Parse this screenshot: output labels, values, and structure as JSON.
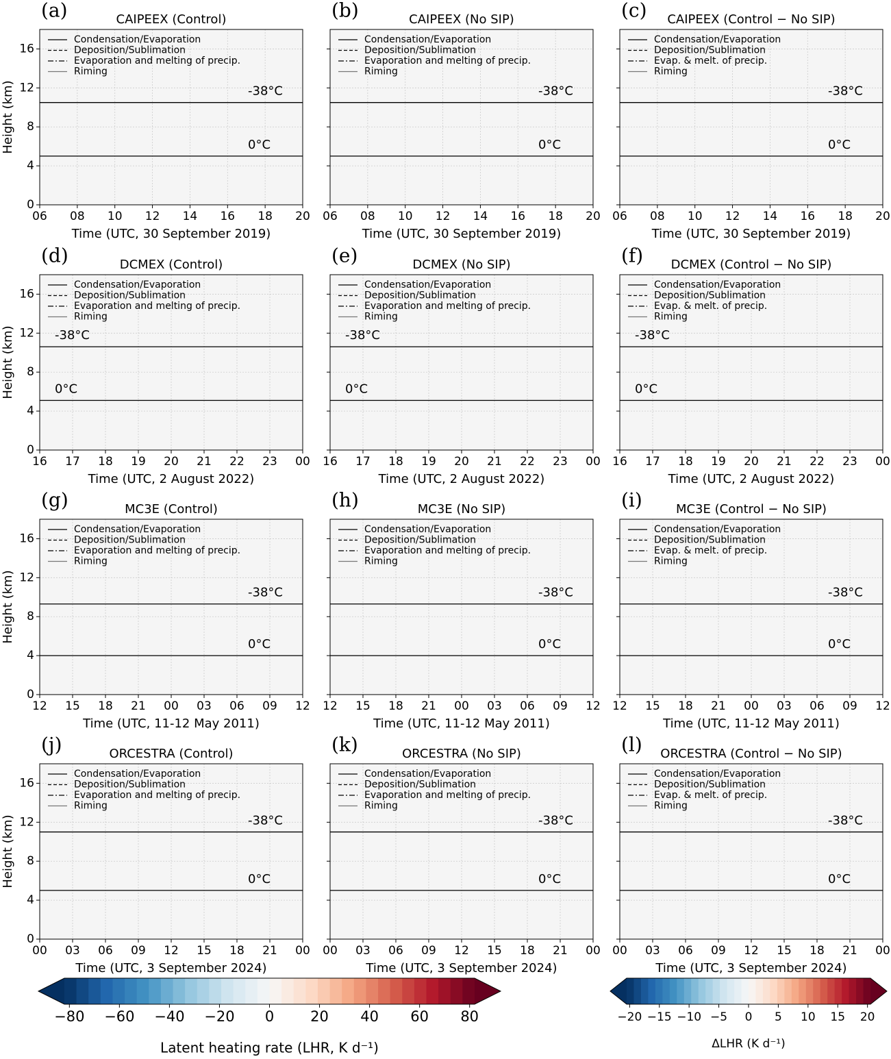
{
  "chart_data": [
    {
      "type": "contour",
      "panel": "(a)",
      "title": "CAIPEEX (Control)",
      "xlabel": "Time (UTC, 30 September 2019)",
      "ylabel": "Height (km)",
      "xlim": [
        6,
        20
      ],
      "xticks": [
        {
          "value": 6,
          "label": "06"
        },
        {
          "value": 8,
          "label": "08"
        },
        10,
        12,
        14,
        16,
        18,
        20
      ],
      "ylim": [
        0,
        18
      ],
      "yticks": [
        0,
        4,
        8,
        12,
        16
      ],
      "grid": true,
      "isotherm_label_side": "right",
      "isotherms": [
        {
          "label": "-38°C",
          "height": 10.5
        },
        {
          "label": "0°C",
          "height": 5.0
        }
      ],
      "legend": [
        "Condensation/Evaporation",
        "Deposition/Sublimation",
        "Evaporation and melting of precip.",
        "Riming"
      ]
    },
    {
      "type": "contour",
      "panel": "(b)",
      "title": "CAIPEEX (No SIP)",
      "xlabel": "Time (UTC, 30 September 2019)",
      "xlim": [
        6,
        20
      ],
      "xticks": [
        {
          "value": 6,
          "label": "06"
        },
        {
          "value": 8,
          "label": "08"
        },
        10,
        12,
        14,
        16,
        18,
        20
      ],
      "ylim": [
        0,
        18
      ],
      "yticks": [
        0,
        4,
        8,
        12,
        16
      ],
      "grid": true,
      "isotherm_label_side": "right",
      "isotherms": [
        {
          "label": "-38°C",
          "height": 10.5
        },
        {
          "label": "0°C",
          "height": 5.0
        }
      ],
      "legend": [
        "Condensation/Evaporation",
        "Deposition/Sublimation",
        "Evaporation and melting of precip.",
        "Riming"
      ]
    },
    {
      "type": "contour",
      "panel": "(c)",
      "title": "CAIPEEX (Control − No SIP)",
      "xlabel": "Time (UTC, 30 September 2019)",
      "xlim": [
        6,
        20
      ],
      "xticks": [
        {
          "value": 6,
          "label": "06"
        },
        {
          "value": 8,
          "label": "08"
        },
        10,
        12,
        14,
        16,
        18,
        20
      ],
      "ylim": [
        0,
        18
      ],
      "yticks": [
        0,
        4,
        8,
        12,
        16
      ],
      "grid": true,
      "isotherm_label_side": "right",
      "isotherms": [
        {
          "label": "-38°C",
          "height": 10.5
        },
        {
          "label": "0°C",
          "height": 5.0
        }
      ],
      "legend": [
        "Condensation/Evaporation",
        "Deposition/Sublimation",
        "Evap. & melt. of precip.",
        "Riming"
      ]
    },
    {
      "type": "contour",
      "panel": "(d)",
      "title": "DCMEX (Control)",
      "xlabel": "Time (UTC, 2 August 2022)",
      "ylabel": "Height (km)",
      "xlim": [
        16,
        24
      ],
      "xticks": [
        16,
        17,
        18,
        19,
        20,
        21,
        22,
        23,
        {
          "value": 24,
          "label": "00"
        }
      ],
      "ylim": [
        0,
        18
      ],
      "yticks": [
        0,
        4,
        8,
        12,
        16
      ],
      "grid": true,
      "isotherm_label_side": "left",
      "isotherms": [
        {
          "label": "-38°C",
          "height": 10.6
        },
        {
          "label": "0°C",
          "height": 5.1
        }
      ],
      "legend": [
        "Condensation/Evaporation",
        "Deposition/Sublimation",
        "Evaporation and melting of precip.",
        "Riming"
      ]
    },
    {
      "type": "contour",
      "panel": "(e)",
      "title": "DCMEX (No SIP)",
      "xlabel": "Time (UTC, 2 August 2022)",
      "xlim": [
        16,
        24
      ],
      "xticks": [
        16,
        17,
        18,
        19,
        20,
        21,
        22,
        23,
        {
          "value": 24,
          "label": "00"
        }
      ],
      "ylim": [
        0,
        18
      ],
      "yticks": [
        0,
        4,
        8,
        12,
        16
      ],
      "grid": true,
      "isotherm_label_side": "left",
      "isotherms": [
        {
          "label": "-38°C",
          "height": 10.6
        },
        {
          "label": "0°C",
          "height": 5.1
        }
      ],
      "legend": [
        "Condensation/Evaporation",
        "Deposition/Sublimation",
        "Evaporation and melting of precip.",
        "Riming"
      ]
    },
    {
      "type": "contour",
      "panel": "(f)",
      "title": "DCMEX (Control − No SIP)",
      "xlabel": "Time (UTC, 2 August 2022)",
      "xlim": [
        16,
        24
      ],
      "xticks": [
        16,
        17,
        18,
        19,
        20,
        21,
        22,
        23,
        {
          "value": 24,
          "label": "00"
        }
      ],
      "ylim": [
        0,
        18
      ],
      "yticks": [
        0,
        4,
        8,
        12,
        16
      ],
      "grid": true,
      "isotherm_label_side": "left",
      "isotherms": [
        {
          "label": "-38°C",
          "height": 10.6
        },
        {
          "label": "0°C",
          "height": 5.1
        }
      ],
      "legend": [
        "Condensation/Evaporation",
        "Deposition/Sublimation",
        "Evap. & melt. of precip.",
        "Riming"
      ]
    },
    {
      "type": "contour",
      "panel": "(g)",
      "title": "MC3E (Control)",
      "xlabel": "Time (UTC, 11-12 May 2011)",
      "ylabel": "Height (km)",
      "xlim": [
        12,
        36
      ],
      "xticks": [
        12,
        15,
        18,
        21,
        {
          "value": 24,
          "label": "00"
        },
        {
          "value": 27,
          "label": "03"
        },
        {
          "value": 30,
          "label": "06"
        },
        {
          "value": 33,
          "label": "09"
        },
        {
          "value": 36,
          "label": "12"
        }
      ],
      "ylim": [
        0,
        18
      ],
      "yticks": [
        0,
        4,
        8,
        12,
        16
      ],
      "grid": true,
      "isotherm_label_side": "right",
      "isotherms": [
        {
          "label": "-38°C",
          "height": 9.3
        },
        {
          "label": "0°C",
          "height": 4.0
        }
      ],
      "legend": [
        "Condensation/Evaporation",
        "Deposition/Sublimation",
        "Evaporation and melting of precip.",
        "Riming"
      ]
    },
    {
      "type": "contour",
      "panel": "(h)",
      "title": "MC3E (No SIP)",
      "xlabel": "Time (UTC, 11-12 May 2011)",
      "xlim": [
        12,
        36
      ],
      "xticks": [
        12,
        15,
        18,
        21,
        {
          "value": 24,
          "label": "00"
        },
        {
          "value": 27,
          "label": "03"
        },
        {
          "value": 30,
          "label": "06"
        },
        {
          "value": 33,
          "label": "09"
        },
        {
          "value": 36,
          "label": "12"
        }
      ],
      "ylim": [
        0,
        18
      ],
      "yticks": [
        0,
        4,
        8,
        12,
        16
      ],
      "grid": true,
      "isotherm_label_side": "right",
      "isotherms": [
        {
          "label": "-38°C",
          "height": 9.3
        },
        {
          "label": "0°C",
          "height": 4.0
        }
      ],
      "legend": [
        "Condensation/Evaporation",
        "Deposition/Sublimation",
        "Evaporation and melting of precip.",
        "Riming"
      ]
    },
    {
      "type": "contour",
      "panel": "(i)",
      "title": "MC3E (Control − No SIP)",
      "xlabel": "Time (UTC, 11-12 May 2011)",
      "xlim": [
        12,
        36
      ],
      "xticks": [
        12,
        15,
        18,
        21,
        {
          "value": 24,
          "label": "00"
        },
        {
          "value": 27,
          "label": "03"
        },
        {
          "value": 30,
          "label": "06"
        },
        {
          "value": 33,
          "label": "09"
        },
        {
          "value": 36,
          "label": "12"
        }
      ],
      "ylim": [
        0,
        18
      ],
      "yticks": [
        0,
        4,
        8,
        12,
        16
      ],
      "grid": true,
      "isotherm_label_side": "right",
      "isotherms": [
        {
          "label": "-38°C",
          "height": 9.3
        },
        {
          "label": "0°C",
          "height": 4.0
        }
      ],
      "legend": [
        "Condensation/Evaporation",
        "Deposition/Sublimation",
        "Evap. & melt. of precip.",
        "Riming"
      ]
    },
    {
      "type": "contour",
      "panel": "(j)",
      "title": "ORCESTRA (Control)",
      "xlabel": "Time (UTC, 3 September 2024)",
      "ylabel": "Height (km)",
      "xlim": [
        0,
        24
      ],
      "xticks": [
        {
          "value": 0,
          "label": "00"
        },
        {
          "value": 3,
          "label": "03"
        },
        {
          "value": 6,
          "label": "06"
        },
        {
          "value": 9,
          "label": "09"
        },
        12,
        15,
        18,
        21,
        {
          "value": 24,
          "label": "00"
        }
      ],
      "ylim": [
        0,
        18
      ],
      "yticks": [
        0,
        4,
        8,
        12,
        16
      ],
      "grid": true,
      "isotherm_label_side": "right",
      "isotherms": [
        {
          "label": "-38°C",
          "height": 11.0
        },
        {
          "label": "0°C",
          "height": 5.0
        }
      ],
      "legend": [
        "Condensation/Evaporation",
        "Deposition/Sublimation",
        "Evaporation and melting of precip.",
        "Riming"
      ]
    },
    {
      "type": "contour",
      "panel": "(k)",
      "title": "ORCESTRA (No SIP)",
      "xlabel": "Time (UTC, 3 September 2024)",
      "xlim": [
        0,
        24
      ],
      "xticks": [
        {
          "value": 0,
          "label": "00"
        },
        {
          "value": 3,
          "label": "03"
        },
        {
          "value": 6,
          "label": "06"
        },
        {
          "value": 9,
          "label": "09"
        },
        12,
        15,
        18,
        21,
        {
          "value": 24,
          "label": "00"
        }
      ],
      "ylim": [
        0,
        18
      ],
      "yticks": [
        0,
        4,
        8,
        12,
        16
      ],
      "grid": true,
      "isotherm_label_side": "right",
      "isotherms": [
        {
          "label": "-38°C",
          "height": 11.0
        },
        {
          "label": "0°C",
          "height": 5.0
        }
      ],
      "legend": [
        "Condensation/Evaporation",
        "Deposition/Sublimation",
        "Evaporation and melting of precip.",
        "Riming"
      ]
    },
    {
      "type": "contour",
      "panel": "(l)",
      "title": "ORCESTRA (Control − No SIP)",
      "xlabel": "Time (UTC, 3 September 2024)",
      "xlim": [
        0,
        24
      ],
      "xticks": [
        {
          "value": 0,
          "label": "00"
        },
        {
          "value": 3,
          "label": "03"
        },
        {
          "value": 6,
          "label": "06"
        },
        {
          "value": 9,
          "label": "09"
        },
        12,
        15,
        18,
        21,
        {
          "value": 24,
          "label": "00"
        }
      ],
      "ylim": [
        0,
        18
      ],
      "yticks": [
        0,
        4,
        8,
        12,
        16
      ],
      "grid": true,
      "isotherm_label_side": "right",
      "isotherms": [
        {
          "label": "-38°C",
          "height": 11.0
        },
        {
          "label": "0°C",
          "height": 5.0
        }
      ],
      "legend": [
        "Condensation/Evaporation",
        "Deposition/Sublimation",
        "Evap. & melt. of precip.",
        "Riming"
      ]
    },
    {
      "type": "colorbar",
      "label": "Latent heating rate (LHR, K d⁻¹)",
      "xlim": [
        -82,
        82
      ],
      "xticks": [
        {
          "value": -80,
          "label": "−80"
        },
        {
          "value": -60,
          "label": "−60"
        },
        {
          "value": -40,
          "label": "−40"
        },
        {
          "value": -20,
          "label": "−20"
        },
        0,
        20,
        40,
        60,
        80
      ],
      "colors": [
        "#053061",
        "#2166ac",
        "#4393c3",
        "#92c5de",
        "#d1e5f0",
        "#f7f7f7",
        "#fddbc7",
        "#f4a582",
        "#d6604d",
        "#b2182b",
        "#67001f"
      ]
    },
    {
      "type": "colorbar",
      "label": "ΔLHR (K d⁻¹)",
      "xlim": [
        -20.5,
        20.5
      ],
      "xticks": [
        {
          "value": -20,
          "label": "−20"
        },
        {
          "value": -15,
          "label": "−15"
        },
        {
          "value": -10,
          "label": "−10"
        },
        {
          "value": -5,
          "label": "−5"
        },
        0,
        5,
        10,
        15,
        20
      ],
      "colors": [
        "#053061",
        "#2166ac",
        "#4393c3",
        "#92c5de",
        "#d1e5f0",
        "#f7f7f7",
        "#fddbc7",
        "#f4a582",
        "#d6604d",
        "#b2182b",
        "#67001f"
      ]
    }
  ]
}
